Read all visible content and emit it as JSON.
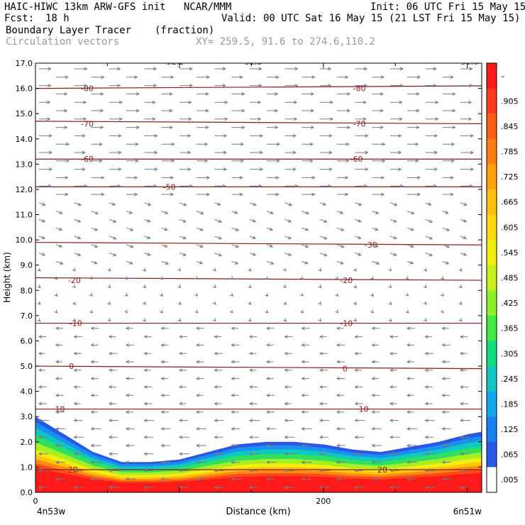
{
  "header": {
    "title_left": "HAIC-HIWC 13km ARW-GFS init   NCAR/MMM",
    "init": "Init: 06 UTC Fri 15 May 15",
    "fcst_label": "Fcst:",
    "fcst_value": "18 h",
    "valid": "Valid: 00 UTC Sat 16 May 15 (21 LST Fri 15 May 15)",
    "field_name": "Boundary Layer Tracer",
    "field_unit": "(fraction)",
    "vector_label": "Circulation vectors",
    "xy_label": "XY= 259.5, 91.6 to 274.6,110.2"
  },
  "chart_data": {
    "type": "heatmap",
    "xlabel": "Distance (km)",
    "ylabel": "Height (km)",
    "xlim": [
      0,
      310
    ],
    "ylim": [
      0,
      17
    ],
    "x_ticks": [
      0,
      200
    ],
    "x_tick_labels": [
      "0",
      "200"
    ],
    "x_end_labels": [
      "4n53w",
      "6n51w"
    ],
    "y_ticks": [
      0,
      1,
      2,
      3,
      4,
      5,
      6,
      7,
      8,
      9,
      10,
      11,
      12,
      13,
      14,
      15,
      16,
      17
    ],
    "y_tick_labels": [
      "0.0",
      "1.0",
      "2.0",
      "3.0",
      "4.0",
      "5.0",
      "6.0",
      "7.0",
      "8.0",
      "9.0",
      "10.0",
      "11.0",
      "12.0",
      "13.0",
      "14.0",
      "15.0",
      "16.0",
      "17.0"
    ],
    "tracer_top_profile": {
      "x": [
        0,
        20,
        40,
        60,
        80,
        100,
        120,
        140,
        160,
        180,
        200,
        220,
        240,
        260,
        280,
        300,
        310
      ],
      "y": [
        3.0,
        2.3,
        1.6,
        1.2,
        1.2,
        1.3,
        1.6,
        1.9,
        2.0,
        2.0,
        1.9,
        1.7,
        1.6,
        1.8,
        2.0,
        2.3,
        2.4
      ]
    },
    "isotherms_celsius": [
      {
        "value": -80,
        "heights": [
          16.0,
          16.1
        ]
      },
      {
        "value": -70,
        "heights": [
          14.7,
          14.6
        ]
      },
      {
        "value": -60,
        "heights": [
          13.2,
          13.2
        ]
      },
      {
        "value": -50,
        "heights": [
          12.1,
          12.1
        ]
      },
      {
        "value": -30,
        "heights": [
          9.9,
          9.8
        ]
      },
      {
        "value": -20,
        "heights": [
          8.5,
          8.4
        ]
      },
      {
        "value": -10,
        "heights": [
          6.7,
          6.7
        ]
      },
      {
        "value": 0,
        "heights": [
          5.0,
          4.9
        ]
      },
      {
        "value": 10,
        "heights": [
          3.3,
          3.3
        ]
      },
      {
        "value": 20,
        "heights": [
          0.9,
          0.9
        ]
      }
    ],
    "isotherm_labels": [
      {
        "text": "-80",
        "x": 36,
        "y": 16.0
      },
      {
        "text": "-80",
        "x": 225,
        "y": 16.0
      },
      {
        "text": "-70",
        "x": 36,
        "y": 14.6
      },
      {
        "text": "-70",
        "x": 225,
        "y": 14.6
      },
      {
        "text": "-60",
        "x": 36,
        "y": 13.2
      },
      {
        "text": "-60",
        "x": 223,
        "y": 13.2
      },
      {
        "text": "-50",
        "x": 93,
        "y": 12.1
      },
      {
        "text": "-30",
        "x": 233,
        "y": 9.8
      },
      {
        "text": "-20",
        "x": 27,
        "y": 8.4
      },
      {
        "text": "-20",
        "x": 216,
        "y": 8.4
      },
      {
        "text": "-10",
        "x": 28,
        "y": 6.7
      },
      {
        "text": "-10",
        "x": 216,
        "y": 6.7
      },
      {
        "text": "0",
        "x": 25,
        "y": 5.0
      },
      {
        "text": "0",
        "x": 215,
        "y": 4.9
      },
      {
        "text": "10",
        "x": 17,
        "y": 3.3
      },
      {
        "text": "10",
        "x": 228,
        "y": 3.3
      },
      {
        "text": "20",
        "x": 26,
        "y": 0.9
      },
      {
        "text": "20",
        "x": 241,
        "y": 0.9
      }
    ],
    "top_labels": [
      "-52.2",
      "-52.3",
      "-52.6"
    ],
    "colorbar": {
      "labels": [
        "–",
        ".905",
        ".845",
        ".785",
        ".725",
        ".665",
        ".605",
        ".545",
        ".485",
        ".425",
        ".365",
        ".305",
        ".245",
        ".185",
        ".125",
        ".065",
        ".005"
      ],
      "colors": [
        "#ff1a1a",
        "#ff3a1a",
        "#ff5a16",
        "#ff7d12",
        "#ffa00e",
        "#ffbf0c",
        "#ffd90e",
        "#f2ee10",
        "#c8f01a",
        "#8ef028",
        "#40ec40",
        "#10dd80",
        "#10c8c0",
        "#10a8ea",
        "#1c80f0",
        "#2a58e6",
        "#ffffff"
      ]
    },
    "wind_vectors": [
      {
        "z_min": 11.5,
        "z_max": 17.0,
        "u": 1.0,
        "w": 0.0,
        "len": 18
      },
      {
        "z_min": 9.0,
        "z_max": 11.5,
        "u": 0.8,
        "w": -0.1,
        "len": 12
      },
      {
        "z_min": 6.5,
        "z_max": 9.0,
        "u": 0.3,
        "w": -0.1,
        "len": 6
      },
      {
        "z_min": 3.0,
        "z_max": 6.5,
        "u": -1.0,
        "w": 0.0,
        "len": 11
      },
      {
        "z_min": 0.0,
        "z_max": 3.0,
        "u": -1.0,
        "w": 0.0,
        "len": 14
      }
    ],
    "colors": {
      "contour": "#8b1a1a",
      "vector": "#7a7a7a",
      "near_surface_vector": "#8a8a8a"
    }
  }
}
